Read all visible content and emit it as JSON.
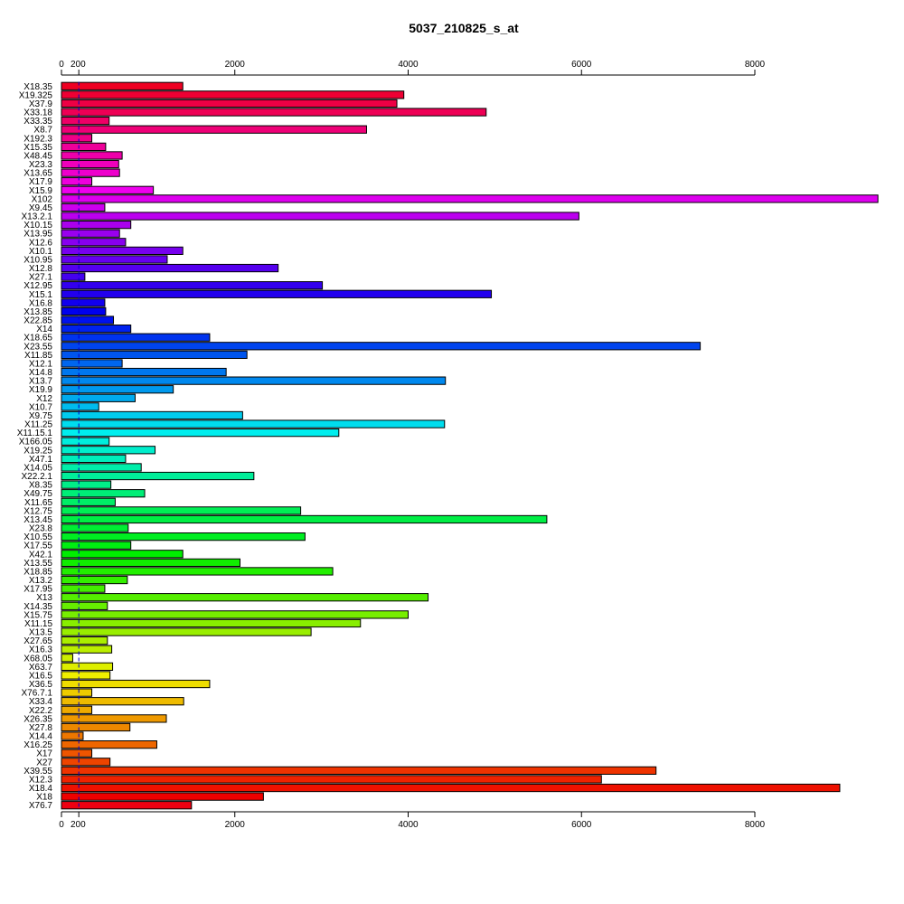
{
  "chart_data": {
    "type": "bar",
    "orientation": "horizontal",
    "title": "5037_210825_s_at",
    "xlabel": "",
    "ylabel": "",
    "xlim": [
      0,
      9500
    ],
    "x_ticks": [
      0,
      200,
      2000,
      4000,
      6000,
      8000
    ],
    "x_tick_labels": [
      "0",
      "200",
      "2000",
      "4000",
      "6000",
      "8000"
    ],
    "axes": [
      "top",
      "bottom"
    ],
    "reference_line": {
      "x": 200,
      "style": "dashed",
      "color": "#0000cc"
    },
    "grid": false,
    "categories": [
      "X18.35",
      "X19.325",
      "X37.9",
      "X33.18",
      "X33.35",
      "X8.7",
      "X192.3",
      "X15.35",
      "X48.45",
      "X23.3",
      "X13.65",
      "X17.9",
      "X15.9",
      "X102",
      "X9.45",
      "X13.2.1",
      "X10.15",
      "X13.95",
      "X12.6",
      "X10.1",
      "X10.95",
      "X12.8",
      "X27.1",
      "X12.95",
      "X15.1",
      "X16.8",
      "X13.85",
      "X22.85",
      "X14",
      "X18.65",
      "X23.55",
      "X11.85",
      "X12.1",
      "X14.8",
      "X13.7",
      "X19.9",
      "X12",
      "X10.7",
      "X9.75",
      "X11.25",
      "X11.15.1",
      "X166.05",
      "X19.25",
      "X47.1",
      "X14.05",
      "X22.2.1",
      "X8.35",
      "X49.75",
      "X11.65",
      "X12.75",
      "X13.45",
      "X23.8",
      "X10.55",
      "X17.55",
      "X42.1",
      "X13.55",
      "X18.85",
      "X13.2",
      "X17.95",
      "X13",
      "X14.35",
      "X15.75",
      "X11.15",
      "X13.5",
      "X27.65",
      "X16.3",
      "X68.05",
      "X63.7",
      "X16.5",
      "X36.5",
      "X76.7.1",
      "X33.4",
      "X22.2",
      "X26.35",
      "X27.8",
      "X14.4",
      "X16.25",
      "X17",
      "X27",
      "X39.55",
      "X12.3",
      "X18.4",
      "X18",
      "X76.7"
    ],
    "values": [
      1400,
      3950,
      3870,
      4900,
      550,
      3520,
      350,
      510,
      700,
      660,
      670,
      350,
      1060,
      9420,
      500,
      5970,
      800,
      670,
      740,
      1400,
      1220,
      2500,
      270,
      3010,
      4960,
      500,
      510,
      600,
      800,
      1710,
      7370,
      2140,
      700,
      1900,
      4430,
      1290,
      850,
      430,
      2090,
      4420,
      3200,
      550,
      1080,
      740,
      920,
      2220,
      570,
      960,
      620,
      2760,
      5600,
      770,
      2810,
      800,
      1400,
      2060,
      3130,
      760,
      500,
      4230,
      530,
      4000,
      3450,
      2880,
      530,
      580,
      130,
      590,
      560,
      1710,
      350,
      1410,
      350,
      1210,
      790,
      250,
      1100,
      350,
      560,
      6860,
      6230,
      8980,
      2330,
      1500
    ],
    "colors": [
      "#ee0022",
      "#ee0033",
      "#ee0044",
      "#ee0055",
      "#ee0066",
      "#ee0077",
      "#ee0088",
      "#ee0099",
      "#ee00aa",
      "#ee00bb",
      "#ee00cc",
      "#ee00dd",
      "#ee00ee",
      "#dd00ee",
      "#cc00ee",
      "#bb00ee",
      "#aa00ee",
      "#9900ee",
      "#8800ee",
      "#7700ee",
      "#6600ee",
      "#5500ee",
      "#4400ee",
      "#3300ee",
      "#2200ee",
      "#1100ee",
      "#0000ee",
      "#0011ee",
      "#0022ee",
      "#0033ee",
      "#0044ee",
      "#0055ee",
      "#0066ee",
      "#0077ee",
      "#0088ee",
      "#0099ee",
      "#00aaee",
      "#00bbee",
      "#00ccee",
      "#00ddee",
      "#00eeee",
      "#00eedd",
      "#00eecc",
      "#00eebb",
      "#00eeaa",
      "#00ee99",
      "#00ee88",
      "#00ee77",
      "#00ee66",
      "#00ee55",
      "#00ee44",
      "#00ee33",
      "#00ee22",
      "#00ee11",
      "#00ee00",
      "#11ee00",
      "#22ee00",
      "#33ee00",
      "#44ee00",
      "#55ee00",
      "#66ee00",
      "#77ee00",
      "#88ee00",
      "#99ee00",
      "#aaee00",
      "#bbee00",
      "#ccee00",
      "#ddee00",
      "#eeee00",
      "#eedd00",
      "#eecc00",
      "#eebb00",
      "#eeaa00",
      "#ee9900",
      "#ee8800",
      "#ee7700",
      "#ee6600",
      "#ee5500",
      "#ee4400",
      "#ee3300",
      "#ee2200",
      "#ee1100",
      "#ee0000",
      "#ee0011"
    ]
  }
}
